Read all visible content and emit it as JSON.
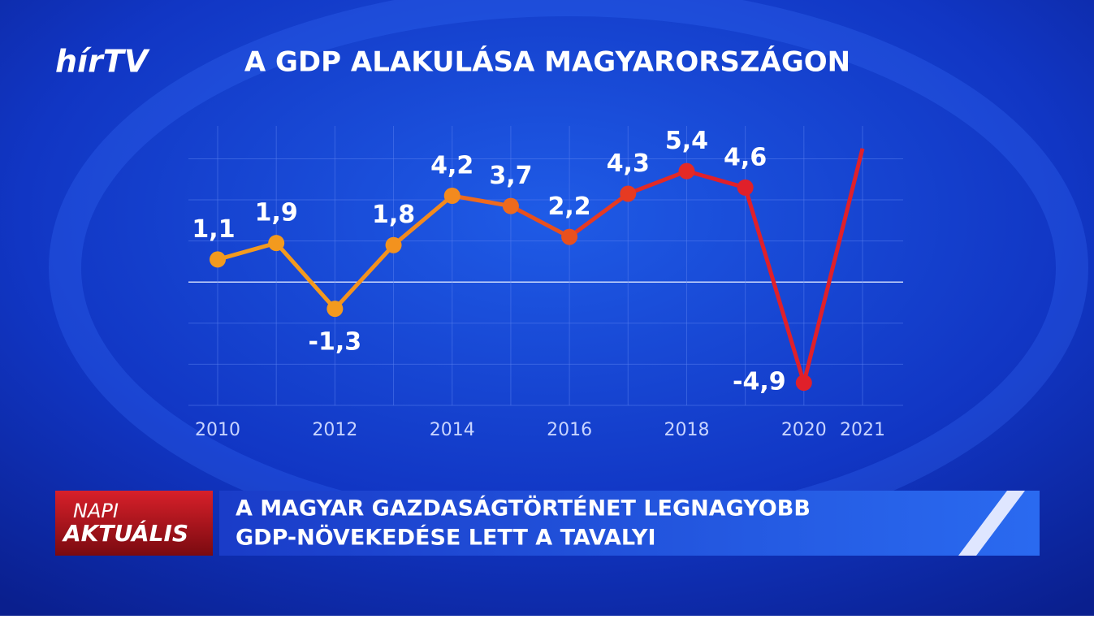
{
  "logo": "hírTV",
  "chart_data": {
    "type": "line",
    "title": "A GDP ALAKULÁSA MAGYARORSZÁGON",
    "x": [
      2010,
      2011,
      2012,
      2013,
      2014,
      2015,
      2016,
      2017,
      2018,
      2019,
      2020,
      2021
    ],
    "xlim": [
      2010,
      2021
    ],
    "xticks": [
      2010,
      2012,
      2014,
      2016,
      2018,
      2020,
      2021
    ],
    "ylim": [
      -6,
      7.6
    ],
    "yticks": [
      -6,
      -4,
      -2,
      0,
      2,
      4,
      6
    ],
    "grid": true,
    "series": [
      {
        "values": [
          1.1,
          1.9,
          -1.3,
          1.8,
          4.2,
          3.7,
          2.2,
          4.3,
          5.4,
          4.6,
          -4.9,
          6.5
        ],
        "value_labels": [
          "1,1",
          "1,9",
          "-1,3",
          "1,8",
          "4,2",
          "3,7",
          "2,2",
          "4,3",
          "5,4",
          "4,6",
          "-4,9",
          null
        ],
        "colors": [
          "#f39a1e",
          "#f39a1e",
          "#f39a1e",
          "#f3921e",
          "#f38a1e",
          "#ee6a1e",
          "#e8501e",
          "#e63a22",
          "#e32a26",
          "#e0202a",
          "#e0202a",
          "#e0202a"
        ]
      }
    ]
  },
  "banner": {
    "label": [
      "NAPI",
      "AKTUÁLIS"
    ],
    "headline": [
      "A MAGYAR GAZDASÁGTÖRTÉNET LEGNAGYOBB",
      "GDP-NÖVEKEDÉSE LETT A TAVALYI"
    ]
  }
}
